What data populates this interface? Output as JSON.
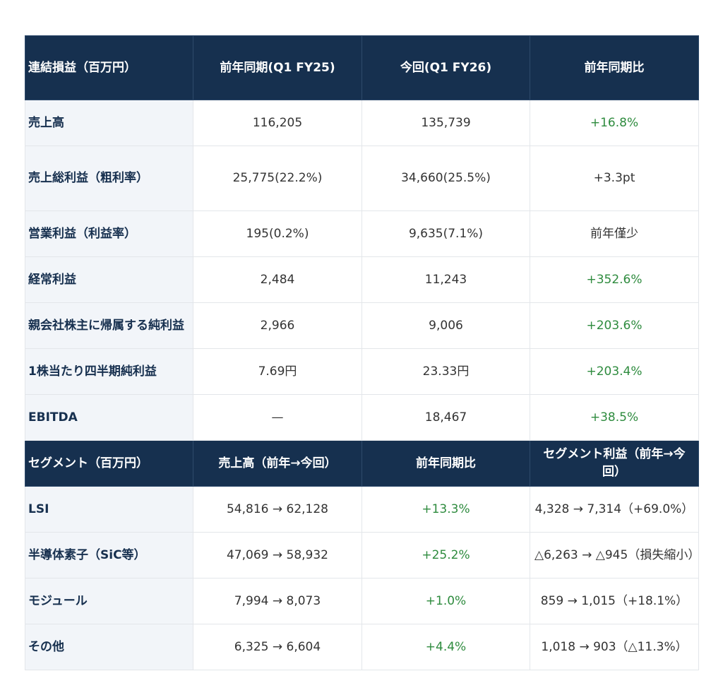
{
  "pl_table": {
    "headers": [
      "連結損益（百万円）",
      "前年同期(Q1 FY25)",
      "今回(Q1 FY26)",
      "前年同期比"
    ],
    "rows": [
      {
        "label": "売上高",
        "prev": "116,205",
        "curr": "135,739",
        "yoy": "+16.8%",
        "positive": true
      },
      {
        "label": "売上総利益（粗利率）",
        "prev": "25,775(22.2%)",
        "curr": "34,660(25.5%)",
        "yoy": "+3.3pt",
        "positive": false
      },
      {
        "label": "営業利益（利益率）",
        "prev": "195(0.2%)",
        "curr": "9,635(7.1%)",
        "yoy": "前年僅少",
        "positive": false
      },
      {
        "label": "経常利益",
        "prev": "2,484",
        "curr": "11,243",
        "yoy": "+352.6%",
        "positive": true
      },
      {
        "label": "親会社株主に帰属する純利益",
        "prev": "2,966",
        "curr": "9,006",
        "yoy": "+203.6%",
        "positive": true
      },
      {
        "label": "1株当たり四半期純利益",
        "prev": "7.69円",
        "curr": "23.33円",
        "yoy": "+203.4%",
        "positive": true
      },
      {
        "label": "EBITDA",
        "prev": "—",
        "curr": "18,467",
        "yoy": "+38.5%",
        "positive": true
      }
    ]
  },
  "segment_table": {
    "headers": [
      "セグメント（百万円）",
      "売上高（前年→今回）",
      "前年同期比",
      "セグメント利益（前年→今回）"
    ],
    "rows": [
      {
        "label": "LSI",
        "sales": "54,816 → 62,128",
        "yoy": "+13.3%",
        "profit": "4,328 → 7,314（+69.0%）"
      },
      {
        "label": "半導体素子（SiC等）",
        "sales": "47,069 → 58,932",
        "yoy": "+25.2%",
        "profit": "△6,263 → △945（損失縮小）"
      },
      {
        "label": "モジュール",
        "sales": "7,994 → 8,073",
        "yoy": "+1.0%",
        "profit": "859 → 1,015（+18.1%）"
      },
      {
        "label": "その他",
        "sales": "6,325 → 6,604",
        "yoy": "+4.4%",
        "profit": "1,018 → 903（△11.3%）"
      }
    ]
  },
  "colors": {
    "header_bg": "#16304f",
    "label_bg": "#f2f5f9",
    "positive": "#2e8b3e"
  }
}
